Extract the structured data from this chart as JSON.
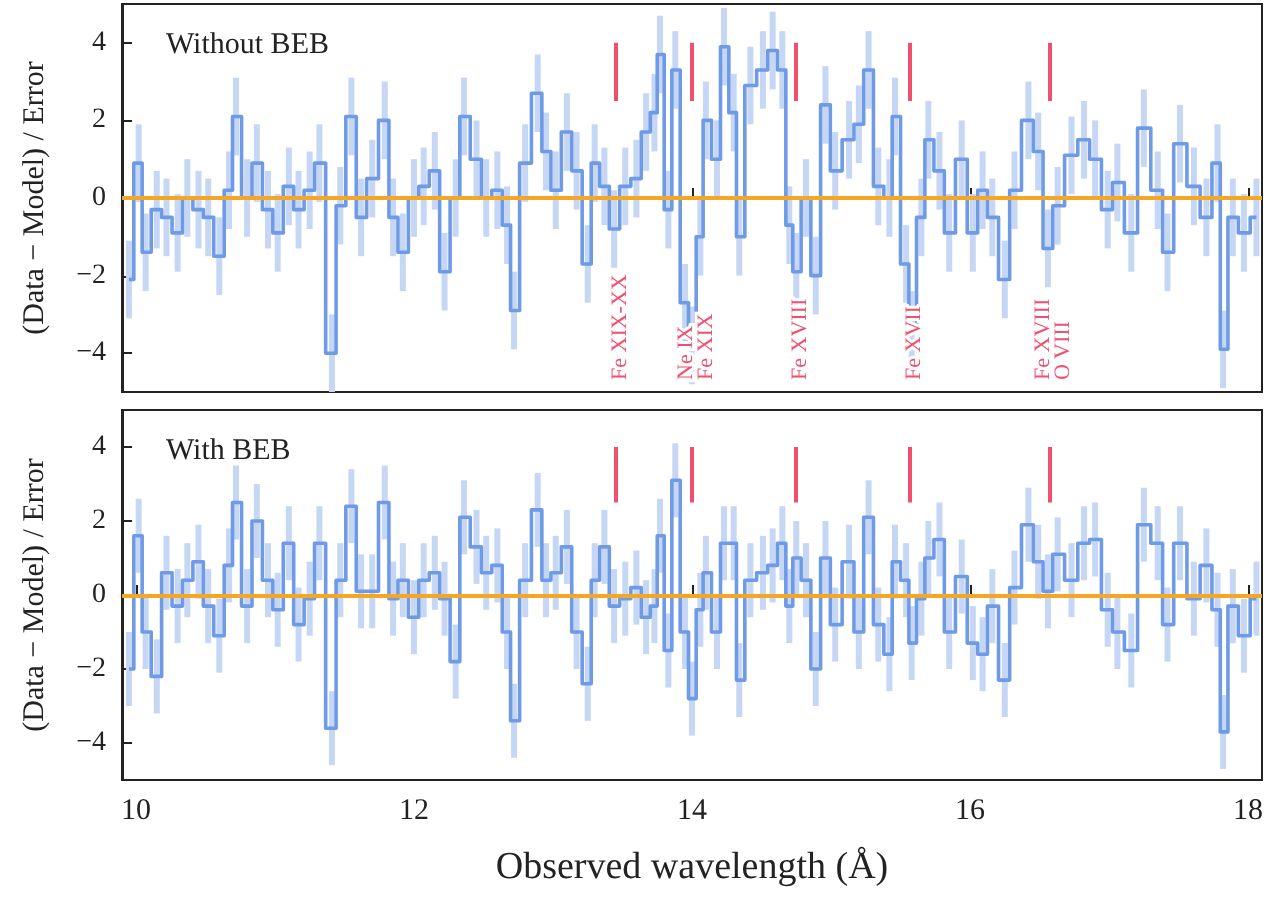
{
  "chart_data": [
    {
      "type": "step",
      "title": "Without BEB",
      "ylabel": "(Data − Model) / Error",
      "xlim": [
        9.9,
        18.1
      ],
      "xticks": [
        10,
        12,
        14,
        16,
        18
      ],
      "ylim": [
        -5,
        5
      ],
      "yticks": [
        -4,
        -2,
        0,
        2,
        4
      ],
      "tick_labels": "y",
      "x": [
        9.95,
        10.02,
        10.07,
        10.15,
        10.22,
        10.3,
        10.37,
        10.45,
        10.52,
        10.6,
        10.67,
        10.72,
        10.8,
        10.87,
        10.95,
        11.02,
        11.1,
        11.17,
        11.25,
        11.32,
        11.41,
        11.47,
        11.55,
        11.62,
        11.7,
        11.79,
        11.85,
        11.92,
        12.0,
        12.07,
        12.15,
        12.22,
        12.3,
        12.36,
        12.45,
        12.52,
        12.6,
        12.67,
        12.72,
        12.8,
        12.89,
        12.95,
        13.02,
        13.1,
        13.17,
        13.25,
        13.3,
        13.37,
        13.44,
        13.52,
        13.6,
        13.67,
        13.73,
        13.77,
        13.83,
        13.88,
        13.95,
        14.0,
        14.06,
        14.1,
        14.18,
        14.23,
        14.3,
        14.34,
        14.42,
        14.51,
        14.58,
        14.65,
        14.7,
        14.75,
        14.82,
        14.89,
        14.96,
        15.03,
        15.13,
        15.2,
        15.27,
        15.34,
        15.42,
        15.46,
        15.54,
        15.58,
        15.65,
        15.7,
        15.78,
        15.85,
        15.94,
        16.02,
        16.09,
        16.16,
        16.25,
        16.32,
        16.42,
        16.49,
        16.56,
        16.63,
        16.73,
        16.82,
        16.9,
        16.99,
        17.06,
        17.16,
        17.25,
        17.35,
        17.42,
        17.51,
        17.61,
        17.7,
        17.78,
        17.82,
        17.89,
        17.97,
        18.06
      ],
      "series": [
        {
          "color": "#6f9be6",
          "values": [
            -2.1,
            0.9,
            -1.4,
            -0.3,
            -0.5,
            -0.9,
            0,
            -0.3,
            -0.5,
            -1.5,
            0.2,
            2.1,
            0,
            0.9,
            -0.3,
            -0.9,
            0.3,
            -0.3,
            0.2,
            0.9,
            -4.0,
            -0.2,
            2.1,
            -0.5,
            0.5,
            2.0,
            -0.5,
            -1.4,
            0,
            0.3,
            0.7,
            -1.9,
            0,
            2.1,
            1.0,
            0,
            0.2,
            -0.7,
            -2.9,
            0.9,
            2.7,
            1.2,
            0.2,
            1.7,
            0.7,
            -1.7,
            0.9,
            0.3,
            -0.8,
            0.3,
            0.5,
            1.7,
            2.2,
            3.7,
            -0.3,
            3.3,
            -2.7,
            -3.8,
            -1.0,
            2.0,
            1.0,
            3.9,
            2.2,
            -1.0,
            2.9,
            3.3,
            3.8,
            3.3,
            -0.7,
            -1.9,
            0,
            -2.0,
            2.4,
            0.7,
            1.5,
            1.9,
            3.3,
            0.3,
            0,
            2.1,
            -1.7,
            -3.4,
            -0.5,
            1.5,
            0.7,
            -0.9,
            1.0,
            -0.9,
            0.2,
            -0.5,
            -2.1,
            0.2,
            2.0,
            1.2,
            -1.3,
            -0.2,
            1.1,
            1.5,
            1.0,
            -0.3,
            0.4,
            -0.9,
            1.8,
            0.2,
            -1.4,
            1.4,
            0.3,
            -0.5,
            0.9,
            -3.9,
            -0.5,
            -0.9,
            -0.5
          ],
          "errors": [
            1,
            1,
            1,
            1,
            1,
            1,
            1,
            1,
            1,
            1,
            1,
            1,
            1,
            1,
            1,
            1,
            1,
            1,
            1,
            1,
            1,
            1,
            1,
            1,
            1,
            1,
            1,
            1,
            1,
            1,
            1,
            1,
            1,
            1,
            1,
            1,
            1,
            1,
            1,
            1,
            1,
            1,
            1,
            1,
            1,
            1,
            1,
            1,
            1,
            1,
            1,
            1,
            1,
            1,
            1,
            1,
            1,
            1,
            1,
            1,
            1,
            1,
            1,
            1,
            1,
            1,
            1,
            1,
            1,
            1,
            1,
            1,
            1,
            1,
            1,
            1,
            1,
            1,
            1,
            1,
            1,
            1,
            1,
            1,
            1,
            1,
            1,
            1,
            1,
            1,
            1,
            1,
            1,
            1,
            1,
            1,
            1,
            1,
            1,
            1,
            1,
            1,
            1,
            1,
            1,
            1,
            1,
            1,
            1,
            1,
            1,
            1,
            1
          ]
        }
      ],
      "ref_lines": [
        {
          "axis": "y",
          "value": 0,
          "color": "#f5a623"
        },
        {
          "axis": "x",
          "value": 13.45,
          "color": "#f0506e",
          "label": "Fe XIX-XX"
        },
        {
          "axis": "x",
          "value": 14.0,
          "color": "#f0506e",
          "label": "Ne IX\nFe XIX"
        },
        {
          "axis": "x",
          "value": 14.75,
          "color": "#f0506e",
          "label": "Fe XVIII"
        },
        {
          "axis": "x",
          "value": 15.57,
          "color": "#f0506e",
          "label": "Fe XVII"
        },
        {
          "axis": "x",
          "value": 16.57,
          "color": "#f0506e",
          "label": "Fe XVIII\nO VIII"
        }
      ]
    },
    {
      "type": "step",
      "title": "With BEB",
      "xlabel": "Observed wavelength (Å)",
      "ylabel": "(Data − Model) / Error",
      "xlim": [
        9.9,
        18.1
      ],
      "xticks": [
        10,
        12,
        14,
        16,
        18
      ],
      "ylim": [
        -5,
        5
      ],
      "yticks": [
        -4,
        -2,
        0,
        2,
        4
      ],
      "x": [
        9.95,
        10.02,
        10.07,
        10.15,
        10.22,
        10.3,
        10.37,
        10.45,
        10.52,
        10.6,
        10.67,
        10.72,
        10.8,
        10.87,
        10.95,
        11.02,
        11.1,
        11.17,
        11.25,
        11.32,
        11.41,
        11.47,
        11.55,
        11.62,
        11.7,
        11.79,
        11.85,
        11.92,
        12.0,
        12.07,
        12.15,
        12.22,
        12.3,
        12.36,
        12.45,
        12.52,
        12.6,
        12.67,
        12.72,
        12.8,
        12.89,
        12.95,
        13.02,
        13.1,
        13.17,
        13.25,
        13.3,
        13.37,
        13.44,
        13.52,
        13.6,
        13.67,
        13.73,
        13.77,
        13.83,
        13.88,
        13.95,
        14.0,
        14.06,
        14.1,
        14.18,
        14.23,
        14.3,
        14.34,
        14.42,
        14.51,
        14.58,
        14.65,
        14.7,
        14.75,
        14.82,
        14.89,
        14.96,
        15.03,
        15.13,
        15.2,
        15.27,
        15.34,
        15.42,
        15.46,
        15.54,
        15.58,
        15.65,
        15.7,
        15.78,
        15.85,
        15.94,
        16.02,
        16.09,
        16.16,
        16.25,
        16.32,
        16.42,
        16.49,
        16.56,
        16.63,
        16.73,
        16.82,
        16.9,
        16.99,
        17.06,
        17.16,
        17.25,
        17.35,
        17.42,
        17.51,
        17.61,
        17.7,
        17.78,
        17.82,
        17.89,
        17.97,
        18.06
      ],
      "series": [
        {
          "color": "#6f9be6",
          "values": [
            -2.0,
            1.6,
            -1.0,
            -2.2,
            0.6,
            -0.3,
            0.4,
            0.9,
            -0.3,
            -1.1,
            0.8,
            2.5,
            -0.3,
            2.0,
            0.4,
            -0.4,
            1.4,
            -0.8,
            -0.1,
            1.4,
            -3.6,
            0.4,
            2.4,
            0.1,
            0.1,
            2.5,
            -0.1,
            0.4,
            -0.6,
            0.4,
            0.6,
            -0.1,
            -1.8,
            2.1,
            1.3,
            0.6,
            0.8,
            -1.0,
            -3.4,
            0.4,
            2.3,
            0.4,
            0.6,
            1.3,
            -1.0,
            -2.4,
            0.4,
            1.3,
            -0.3,
            -0.1,
            0.2,
            -0.6,
            -0.3,
            1.6,
            -1.5,
            3.1,
            -1.0,
            -2.8,
            -0.4,
            0.6,
            -1.0,
            1.4,
            1.4,
            -2.3,
            0.4,
            0.6,
            0.8,
            1.4,
            -0.3,
            1.0,
            0.4,
            -2.0,
            1.0,
            -0.8,
            0.9,
            -1.0,
            2.1,
            -0.8,
            -1.6,
            0.9,
            0.4,
            -1.3,
            -0.1,
            1.0,
            1.5,
            -1.0,
            0.5,
            -1.3,
            -1.6,
            -0.3,
            -2.3,
            0.2,
            1.9,
            0.9,
            0.1,
            1.1,
            0.4,
            1.4,
            1.5,
            -0.4,
            -1.0,
            -1.5,
            1.9,
            1.4,
            -0.8,
            1.4,
            -0.1,
            0.8,
            -0.4,
            -3.7,
            -0.3,
            -1.1,
            -0.1
          ],
          "errors": [
            1,
            1,
            1,
            1,
            1,
            1,
            1,
            1,
            1,
            1,
            1,
            1,
            1,
            1,
            1,
            1,
            1,
            1,
            1,
            1,
            1,
            1,
            1,
            1,
            1,
            1,
            1,
            1,
            1,
            1,
            1,
            1,
            1,
            1,
            1,
            1,
            1,
            1,
            1,
            1,
            1,
            1,
            1,
            1,
            1,
            1,
            1,
            1,
            1,
            1,
            1,
            1,
            1,
            1,
            1,
            1,
            1,
            1,
            1,
            1,
            1,
            1,
            1,
            1,
            1,
            1,
            1,
            1,
            1,
            1,
            1,
            1,
            1,
            1,
            1,
            1,
            1,
            1,
            1,
            1,
            1,
            1,
            1,
            1,
            1,
            1,
            1,
            1,
            1,
            1,
            1,
            1,
            1,
            1,
            1,
            1,
            1,
            1,
            1,
            1,
            1,
            1,
            1,
            1,
            1,
            1,
            1,
            1,
            1,
            1,
            1,
            1,
            1
          ]
        }
      ],
      "ref_lines": [
        {
          "axis": "y",
          "value": 0,
          "color": "#f5a623"
        },
        {
          "axis": "x",
          "value": 13.45,
          "color": "#f0506e"
        },
        {
          "axis": "x",
          "value": 14.0,
          "color": "#f0506e"
        },
        {
          "axis": "x",
          "value": 14.75,
          "color": "#f0506e"
        },
        {
          "axis": "x",
          "value": 15.57,
          "color": "#f0506e"
        },
        {
          "axis": "x",
          "value": 16.57,
          "color": "#f0506e"
        }
      ]
    }
  ]
}
